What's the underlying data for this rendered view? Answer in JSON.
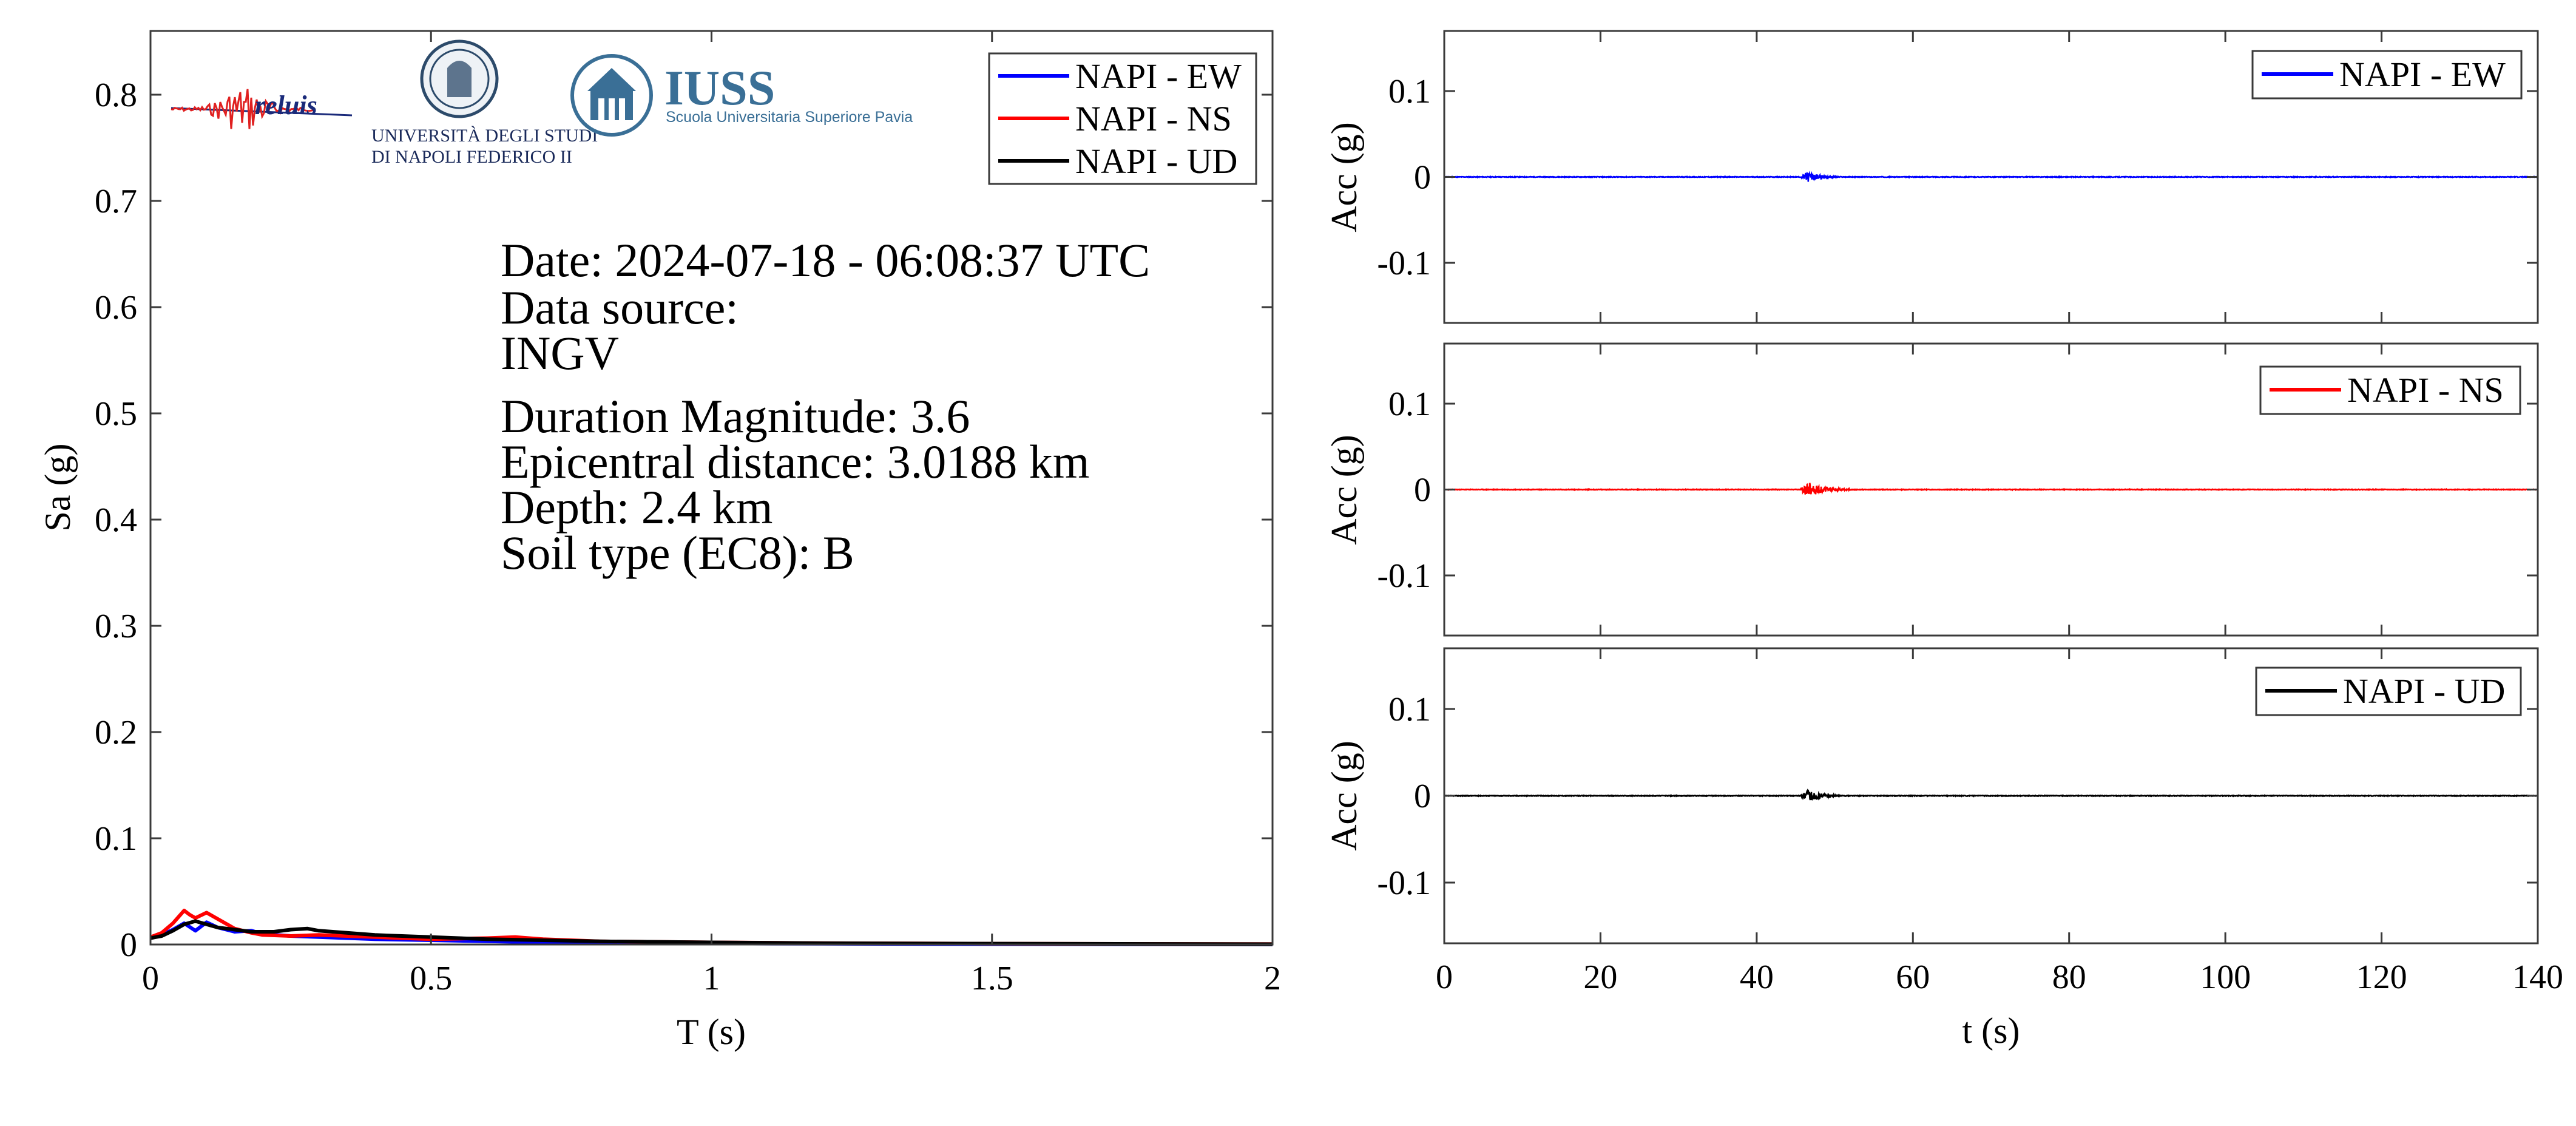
{
  "info": {
    "lines": [
      "Date: 2024-07-18 - 06:08:37 UTC",
      "Data source:",
      "INGV",
      "Duration Magnitude: 3.6",
      "Epicentral distance: 3.0188 km",
      "Depth: 2.4 km",
      "Soil type (EC8): B"
    ]
  },
  "logos": {
    "reluis_text": "reluis",
    "unina_line1": "UNIVERSITÀ DEGLI STUDI",
    "unina_line2": "DI NAPOLI FEDERICO II",
    "iuss_title": "IUSS",
    "iuss_subtitle": "Scuola Universitaria Superiore Pavia"
  },
  "colors": {
    "ew": "#0000ff",
    "ns": "#ff0000",
    "ud": "#000000"
  },
  "chart_data": [
    {
      "type": "line",
      "id": "spectrum",
      "xlabel": "T (s)",
      "ylabel": "Sa (g)",
      "xlim": [
        0,
        2
      ],
      "ylim": [
        0,
        0.86
      ],
      "xticks": [
        0,
        0.5,
        1,
        1.5,
        2
      ],
      "xtick_labels": [
        "0",
        "0.5",
        "1",
        "1.5",
        "2"
      ],
      "yticks": [
        0,
        0.1,
        0.2,
        0.3,
        0.4,
        0.5,
        0.6,
        0.7,
        0.8
      ],
      "ytick_labels": [
        "0",
        "0.1",
        "0.2",
        "0.3",
        "0.4",
        "0.5",
        "0.6",
        "0.7",
        "0.8"
      ],
      "legend_position": "top-right",
      "series": [
        {
          "name": "NAPI - EW",
          "color": "#0000ff",
          "x": [
            0,
            0.02,
            0.04,
            0.06,
            0.08,
            0.1,
            0.12,
            0.15,
            0.18,
            0.2,
            0.25,
            0.3,
            0.35,
            0.4,
            0.5,
            0.6,
            0.7,
            0.8,
            1.0,
            1.2,
            1.5,
            1.8,
            2.0
          ],
          "y": [
            0.007,
            0.009,
            0.014,
            0.02,
            0.013,
            0.021,
            0.016,
            0.012,
            0.013,
            0.01,
            0.008,
            0.007,
            0.006,
            0.005,
            0.004,
            0.003,
            0.002,
            0.0015,
            0.001,
            0.0007,
            0.0004,
            0.0003,
            0.0002
          ]
        },
        {
          "name": "NAPI - NS",
          "color": "#ff0000",
          "x": [
            0,
            0.02,
            0.04,
            0.06,
            0.07,
            0.08,
            0.1,
            0.12,
            0.15,
            0.18,
            0.2,
            0.25,
            0.3,
            0.35,
            0.4,
            0.5,
            0.6,
            0.65,
            0.7,
            0.8,
            1.0,
            1.2,
            1.5,
            1.8,
            2.0
          ],
          "y": [
            0.007,
            0.011,
            0.02,
            0.032,
            0.028,
            0.025,
            0.03,
            0.024,
            0.015,
            0.011,
            0.009,
            0.008,
            0.009,
            0.008,
            0.007,
            0.005,
            0.006,
            0.007,
            0.005,
            0.003,
            0.002,
            0.0013,
            0.0008,
            0.0005,
            0.0004
          ]
        },
        {
          "name": "NAPI - UD",
          "color": "#000000",
          "x": [
            0,
            0.02,
            0.04,
            0.06,
            0.08,
            0.1,
            0.12,
            0.15,
            0.18,
            0.2,
            0.22,
            0.25,
            0.28,
            0.3,
            0.35,
            0.4,
            0.5,
            0.6,
            0.7,
            0.8,
            1.0,
            1.2,
            1.5,
            1.8,
            2.0
          ],
          "y": [
            0.006,
            0.008,
            0.013,
            0.019,
            0.022,
            0.019,
            0.016,
            0.014,
            0.012,
            0.012,
            0.012,
            0.014,
            0.015,
            0.013,
            0.011,
            0.009,
            0.007,
            0.005,
            0.004,
            0.003,
            0.002,
            0.0012,
            0.0008,
            0.0005,
            0.0003
          ]
        }
      ]
    },
    {
      "type": "line",
      "id": "acc-ew",
      "ylabel": "Acc (g)",
      "xlim": [
        0,
        140
      ],
      "ylim": [
        -0.17,
        0.17
      ],
      "yticks": [
        -0.1,
        0,
        0.1
      ],
      "ytick_labels": [
        "-0.1",
        "0",
        "0.1"
      ],
      "legend_position": "top-right",
      "series": [
        {
          "name": "NAPI - EW",
          "color": "#0000ff",
          "burst_start": 45.5,
          "burst_peak": 46.6,
          "burst_end": 52,
          "peak_acc": 0.006
        }
      ]
    },
    {
      "type": "line",
      "id": "acc-ns",
      "ylabel": "Acc (g)",
      "xlim": [
        0,
        140
      ],
      "ylim": [
        -0.17,
        0.17
      ],
      "yticks": [
        -0.1,
        0,
        0.1
      ],
      "ytick_labels": [
        "-0.1",
        "0",
        "0.1"
      ],
      "legend_position": "top-right",
      "series": [
        {
          "name": "NAPI - NS",
          "color": "#ff0000",
          "burst_start": 45.5,
          "burst_peak": 46.6,
          "burst_end": 53,
          "peak_acc": 0.009
        }
      ]
    },
    {
      "type": "line",
      "id": "acc-ud",
      "xlabel": "t (s)",
      "ylabel": "Acc (g)",
      "xlim": [
        0,
        140
      ],
      "ylim": [
        -0.17,
        0.17
      ],
      "xticks": [
        0,
        20,
        40,
        60,
        80,
        100,
        120,
        140
      ],
      "xtick_labels": [
        "0",
        "20",
        "40",
        "60",
        "80",
        "100",
        "120",
        "140"
      ],
      "yticks": [
        -0.1,
        0,
        0.1
      ],
      "ytick_labels": [
        "-0.1",
        "0",
        "0.1"
      ],
      "legend_position": "top-right",
      "series": [
        {
          "name": "NAPI - UD",
          "color": "#000000",
          "burst_start": 45.5,
          "burst_peak": 46.6,
          "burst_end": 52,
          "peak_acc": 0.007
        }
      ]
    }
  ]
}
